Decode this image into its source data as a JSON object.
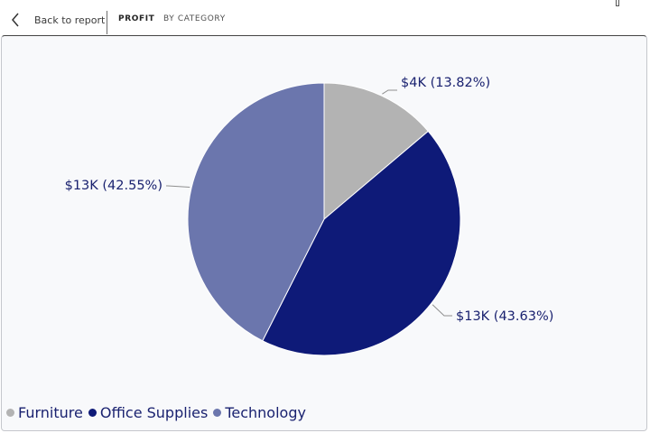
{
  "header": {
    "back_label": "Back to report",
    "breadcrumbs": [
      "PROFIT",
      "BY CATEGORY"
    ]
  },
  "icons": {
    "back": "chevron-left-icon",
    "corner": "window-control-icon"
  },
  "colors": {
    "furniture": "#b3b3b3",
    "office_supplies": "#0e1a78",
    "technology": "#6b76ad",
    "label_text": "#1a2270",
    "leader_line": "#8f8f8f"
  },
  "chart_data": {
    "type": "pie",
    "title": "",
    "categories": [
      "Furniture",
      "Office Supplies",
      "Technology"
    ],
    "values": [
      13.82,
      43.63,
      42.55
    ],
    "data_labels": [
      "$4K (13.82%)",
      "$13K (43.63%)",
      "$13K (42.55%)"
    ],
    "start_angle": "top",
    "direction": "clockwise",
    "legend_position": "bottom-left"
  }
}
